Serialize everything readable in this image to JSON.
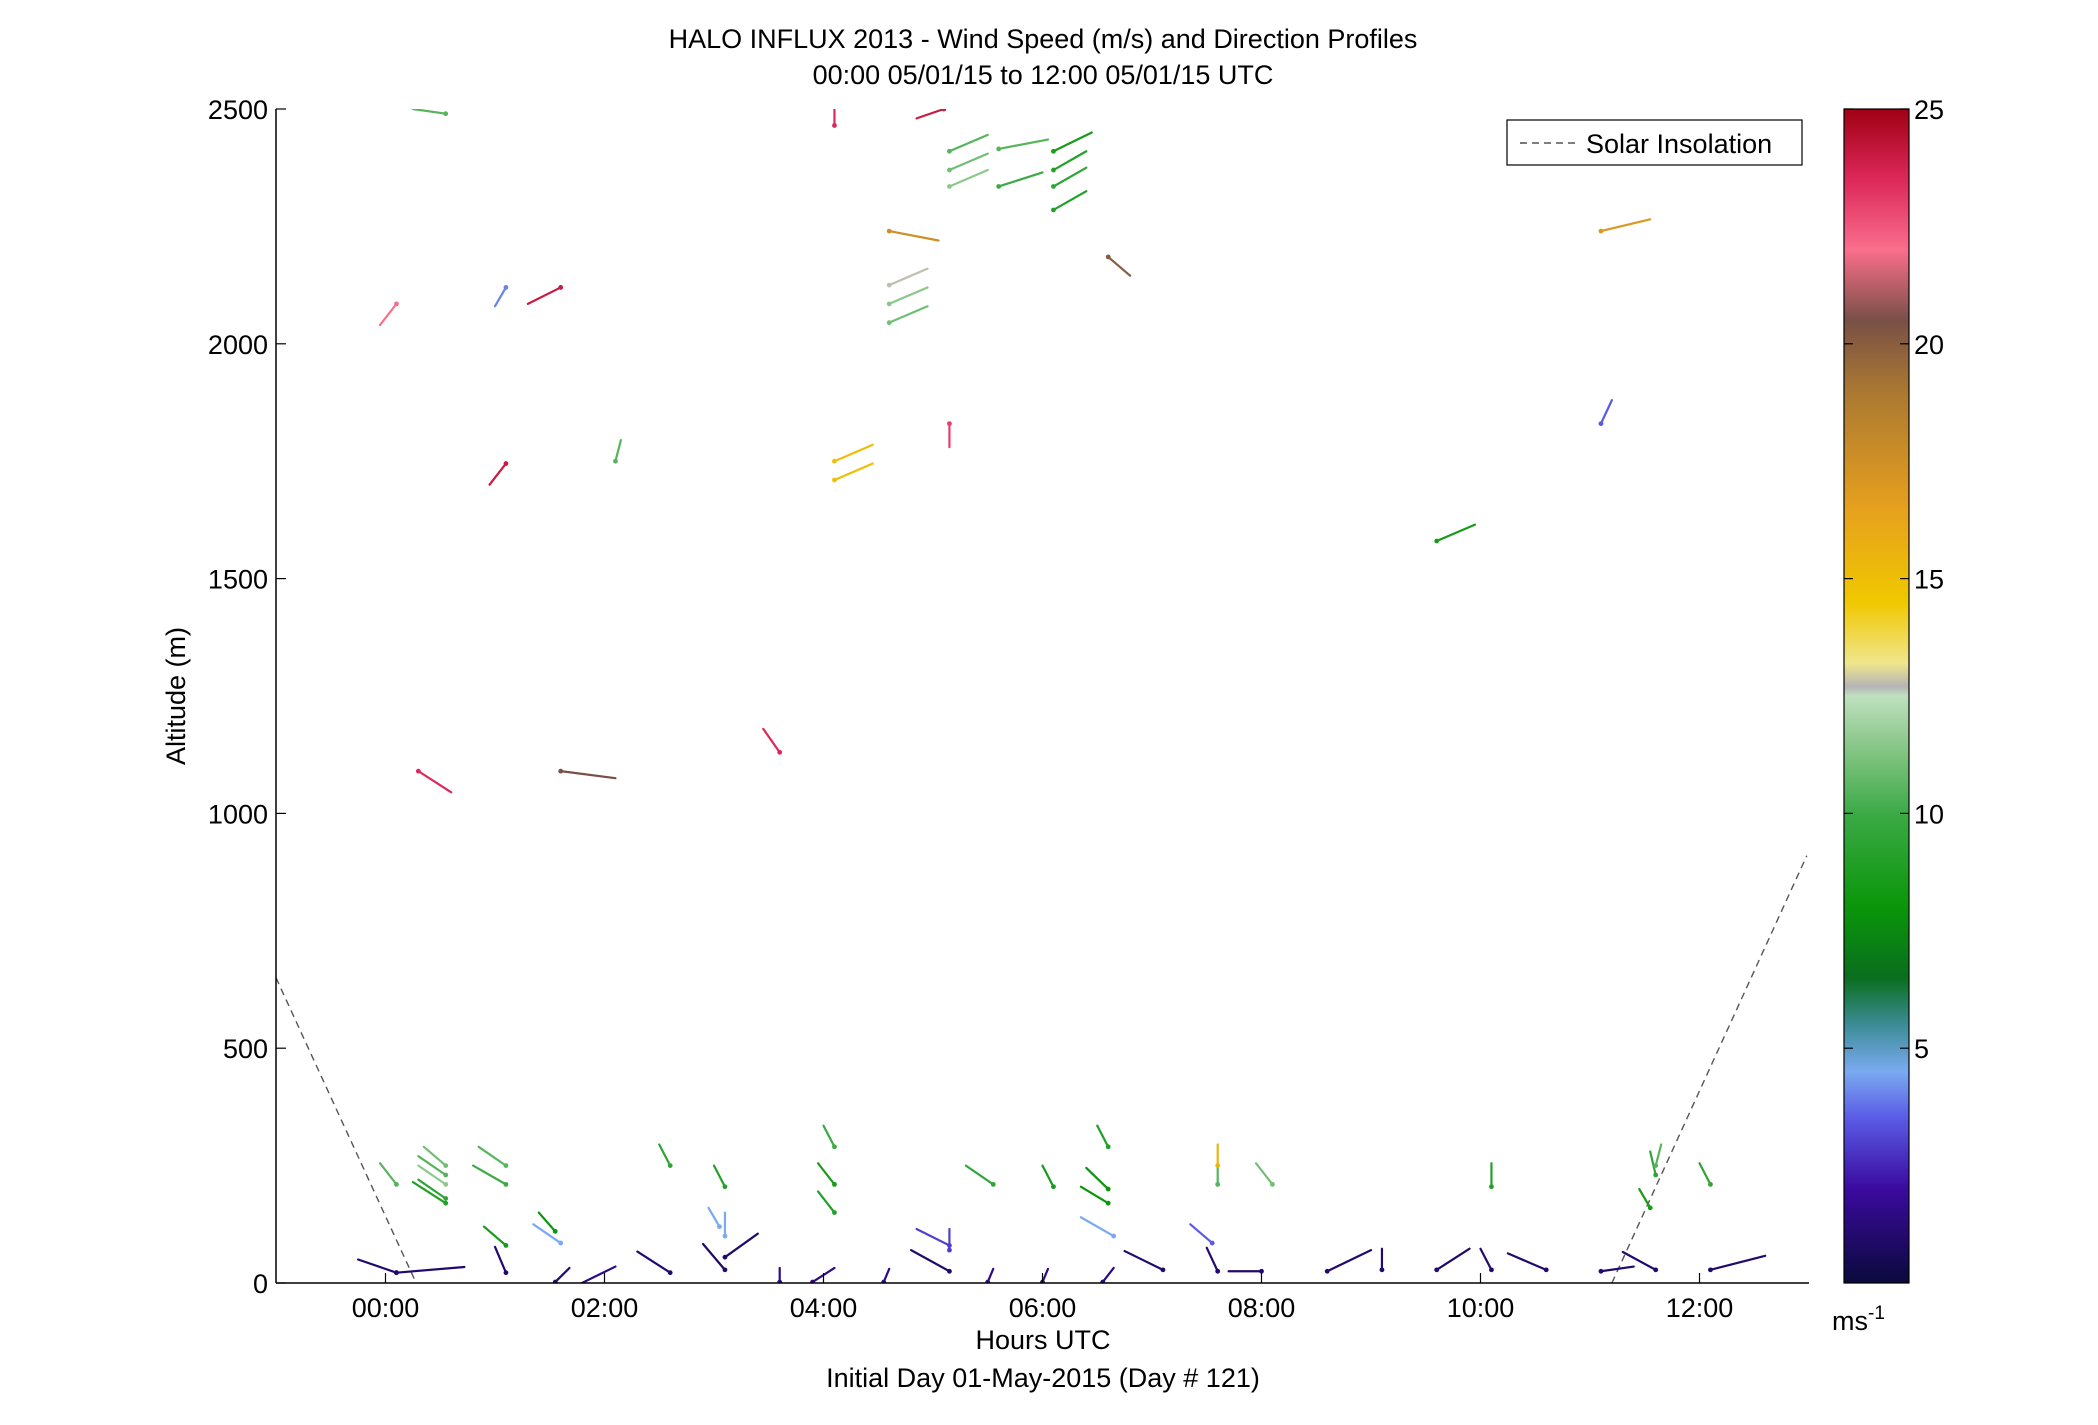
{
  "chart_data": {
    "type": "scatter",
    "title": "HALO INFLUX 2013 - Wind Speed (m/s) and Direction Profiles",
    "subtitle": "00:00 05/01/15 to 12:00 05/01/15  UTC",
    "xlabel": "Hours UTC",
    "xlabel2": "Initial Day 01-May-2015 (Day # 121)",
    "ylabel": "Altitude (m)",
    "xlim": [
      -1.0,
      13.0
    ],
    "ylim": [
      0,
      2500
    ],
    "xticks": [
      {
        "v": 0,
        "label": "00:00"
      },
      {
        "v": 2,
        "label": "02:00"
      },
      {
        "v": 4,
        "label": "04:00"
      },
      {
        "v": 6,
        "label": "06:00"
      },
      {
        "v": 8,
        "label": "08:00"
      },
      {
        "v": 10,
        "label": "10:00"
      },
      {
        "v": 12,
        "label": "12:00"
      }
    ],
    "yticks": [
      {
        "v": 0,
        "label": "0"
      },
      {
        "v": 500,
        "label": "500"
      },
      {
        "v": 1000,
        "label": "1000"
      },
      {
        "v": 1500,
        "label": "1500"
      },
      {
        "v": 2000,
        "label": "2000"
      },
      {
        "v": 2500,
        "label": "2500"
      }
    ],
    "legend": {
      "label": "Solar Insolation",
      "location": "top-right"
    },
    "colorbar": {
      "range": [
        0,
        25
      ],
      "ticks": [
        {
          "v": 5,
          "label": "5"
        },
        {
          "v": 10,
          "label": "10"
        },
        {
          "v": 15,
          "label": "15"
        },
        {
          "v": 20,
          "label": "20"
        },
        {
          "v": 25,
          "label": "25"
        }
      ],
      "unit_base": "ms",
      "unit_exp": "-1",
      "stops": [
        {
          "v": 0,
          "color": "#0a0a3c"
        },
        {
          "v": 2,
          "color": "#3a0a9e"
        },
        {
          "v": 3.5,
          "color": "#5a5ae6"
        },
        {
          "v": 4.5,
          "color": "#7aaaf0"
        },
        {
          "v": 5.5,
          "color": "#3c8c96"
        },
        {
          "v": 6.5,
          "color": "#0a6e1e"
        },
        {
          "v": 8,
          "color": "#0a960a"
        },
        {
          "v": 10,
          "color": "#3caa46"
        },
        {
          "v": 11.5,
          "color": "#8cc88c"
        },
        {
          "v": 12.5,
          "color": "#c0e0c0"
        },
        {
          "v": 12.7,
          "color": "#b4b4b4"
        },
        {
          "v": 13.2,
          "color": "#f0e68c"
        },
        {
          "v": 14.5,
          "color": "#f0c800"
        },
        {
          "v": 16.5,
          "color": "#e6a01e"
        },
        {
          "v": 19,
          "color": "#aa7832"
        },
        {
          "v": 20.5,
          "color": "#785046"
        },
        {
          "v": 22,
          "color": "#fa6e8c"
        },
        {
          "v": 23.5,
          "color": "#dc285a"
        },
        {
          "v": 25,
          "color": "#a00014"
        }
      ]
    },
    "solar_insolation": [
      [
        [
          -1.0,
          650
        ],
        [
          0.28,
          0
        ]
      ],
      [
        [
          11.2,
          0
        ],
        [
          12.98,
          910
        ]
      ]
    ],
    "barbs": [
      {
        "t": 0.1,
        "z": 22,
        "dt": -0.35,
        "dz": 28,
        "s": 1.0
      },
      {
        "t": 0.1,
        "z": 22,
        "dt": 0.62,
        "dz": 12,
        "s": 1.0
      },
      {
        "t": 1.1,
        "z": 22,
        "dt": -0.1,
        "dz": 55,
        "s": 1.0
      },
      {
        "t": 1.55,
        "z": 2,
        "dt": 0.13,
        "dz": 30,
        "s": 1.0
      },
      {
        "t": 1.75,
        "z": -5,
        "dt": 0.35,
        "dz": 40,
        "s": 1.5
      },
      {
        "t": 2.6,
        "z": 22,
        "dt": -0.3,
        "dz": 45,
        "s": 1.0
      },
      {
        "t": 3.1,
        "z": 28,
        "dt": -0.2,
        "dz": 55,
        "s": 1.0
      },
      {
        "t": 3.1,
        "z": 55,
        "dt": 0.3,
        "dz": 50,
        "s": 1.0
      },
      {
        "t": 3.6,
        "z": 2,
        "dt": 0.0,
        "dz": 30,
        "s": 1.5
      },
      {
        "t": 3.9,
        "z": 2,
        "dt": 0.2,
        "dz": 30,
        "s": 1.5
      },
      {
        "t": 4.55,
        "z": 2,
        "dt": 0.05,
        "dz": 28,
        "s": 1.5
      },
      {
        "t": 5.15,
        "z": 25,
        "dt": -0.35,
        "dz": 45,
        "s": 1.0
      },
      {
        "t": 5.5,
        "z": 2,
        "dt": 0.05,
        "dz": 28,
        "s": 1.5
      },
      {
        "t": 6.0,
        "z": 2,
        "dt": 0.05,
        "dz": 28,
        "s": 1.5
      },
      {
        "t": 6.55,
        "z": 2,
        "dt": 0.1,
        "dz": 30,
        "s": 1.5
      },
      {
        "t": 7.1,
        "z": 28,
        "dt": -0.35,
        "dz": 40,
        "s": 1.0
      },
      {
        "t": 7.6,
        "z": 25,
        "dt": -0.1,
        "dz": 50,
        "s": 1.0
      },
      {
        "t": 8.0,
        "z": 25,
        "dt": -0.3,
        "dz": 0,
        "s": 1.0
      },
      {
        "t": 8.6,
        "z": 25,
        "dt": 0.4,
        "dz": 45,
        "s": 1.0
      },
      {
        "t": 9.1,
        "z": 28,
        "dt": 0.0,
        "dz": 45,
        "s": 1.0
      },
      {
        "t": 9.6,
        "z": 28,
        "dt": 0.3,
        "dz": 45,
        "s": 1.0
      },
      {
        "t": 10.1,
        "z": 28,
        "dt": -0.1,
        "dz": 45,
        "s": 1.0
      },
      {
        "t": 10.6,
        "z": 28,
        "dt": -0.35,
        "dz": 35,
        "s": 1.0
      },
      {
        "t": 11.1,
        "z": 25,
        "dt": 0.3,
        "dz": 10,
        "s": 1.0
      },
      {
        "t": 11.6,
        "z": 28,
        "dt": -0.3,
        "dz": 38,
        "s": 1.0
      },
      {
        "t": 12.1,
        "z": 28,
        "dt": 0.5,
        "dz": 30,
        "s": 1.0
      },
      {
        "t": 1.1,
        "z": 80,
        "dt": -0.2,
        "dz": 40,
        "s": 8.5
      },
      {
        "t": 1.55,
        "z": 110,
        "dt": -0.15,
        "dz": 40,
        "s": 8.0
      },
      {
        "t": 1.6,
        "z": 85,
        "dt": -0.25,
        "dz": 40,
        "s": 4.5
      },
      {
        "t": 3.1,
        "z": 100,
        "dt": 0.0,
        "dz": 50,
        "s": 4.5
      },
      {
        "t": 3.05,
        "z": 120,
        "dt": -0.1,
        "dz": 40,
        "s": 4.5
      },
      {
        "t": 5.15,
        "z": 80,
        "dt": -0.3,
        "dz": 35,
        "s": 3.0
      },
      {
        "t": 5.15,
        "z": 70,
        "dt": 0.0,
        "dz": 45,
        "s": 3.0
      },
      {
        "t": 6.65,
        "z": 100,
        "dt": -0.3,
        "dz": 40,
        "s": 4.5
      },
      {
        "t": 7.55,
        "z": 85,
        "dt": -0.2,
        "dz": 40,
        "s": 3.5
      },
      {
        "t": 0.1,
        "z": 210,
        "dt": -0.15,
        "dz": 45,
        "s": 10.5
      },
      {
        "t": 0.55,
        "z": 180,
        "dt": -0.25,
        "dz": 40,
        "s": 9.5
      },
      {
        "t": 0.55,
        "z": 170,
        "dt": -0.3,
        "dz": 45,
        "s": 9.0
      },
      {
        "t": 0.55,
        "z": 230,
        "dt": -0.25,
        "dz": 40,
        "s": 10.5
      },
      {
        "t": 0.55,
        "z": 250,
        "dt": -0.2,
        "dz": 40,
        "s": 11.0
      },
      {
        "t": 0.55,
        "z": 210,
        "dt": -0.25,
        "dz": 40,
        "s": 11.5
      },
      {
        "t": 1.1,
        "z": 210,
        "dt": -0.3,
        "dz": 40,
        "s": 10.0
      },
      {
        "t": 1.1,
        "z": 250,
        "dt": -0.25,
        "dz": 40,
        "s": 10.5
      },
      {
        "t": 2.6,
        "z": 250,
        "dt": -0.1,
        "dz": 45,
        "s": 9.5
      },
      {
        "t": 3.1,
        "z": 205,
        "dt": -0.1,
        "dz": 45,
        "s": 9.0
      },
      {
        "t": 4.1,
        "z": 210,
        "dt": -0.15,
        "dz": 45,
        "s": 8.5
      },
      {
        "t": 4.1,
        "z": 150,
        "dt": -0.15,
        "dz": 45,
        "s": 9.0
      },
      {
        "t": 4.1,
        "z": 290,
        "dt": -0.1,
        "dz": 45,
        "s": 10.0
      },
      {
        "t": 5.55,
        "z": 210,
        "dt": -0.25,
        "dz": 40,
        "s": 9.5
      },
      {
        "t": 6.1,
        "z": 205,
        "dt": -0.1,
        "dz": 45,
        "s": 8.5
      },
      {
        "t": 6.6,
        "z": 200,
        "dt": -0.2,
        "dz": 45,
        "s": 8.0
      },
      {
        "t": 6.6,
        "z": 170,
        "dt": -0.25,
        "dz": 35,
        "s": 8.0
      },
      {
        "t": 6.6,
        "z": 290,
        "dt": -0.1,
        "dz": 45,
        "s": 9.0
      },
      {
        "t": 7.6,
        "z": 210,
        "dt": 0.0,
        "dz": 40,
        "s": 10.5
      },
      {
        "t": 7.6,
        "z": 250,
        "dt": 0.0,
        "dz": 45,
        "s": 15.5
      },
      {
        "t": 8.1,
        "z": 210,
        "dt": -0.15,
        "dz": 45,
        "s": 11.0
      },
      {
        "t": 10.1,
        "z": 205,
        "dt": 0.0,
        "dz": 50,
        "s": 9.0
      },
      {
        "t": 11.55,
        "z": 160,
        "dt": -0.1,
        "dz": 40,
        "s": 8.5
      },
      {
        "t": 11.6,
        "z": 230,
        "dt": -0.05,
        "dz": 50,
        "s": 9.5
      },
      {
        "t": 11.6,
        "z": 250,
        "dt": 0.05,
        "dz": 45,
        "s": 10.5
      },
      {
        "t": 12.1,
        "z": 210,
        "dt": -0.1,
        "dz": 45,
        "s": 9.5
      },
      {
        "t": 0.3,
        "z": 1090,
        "dt": 0.3,
        "dz": -45,
        "s": 23.5
      },
      {
        "t": 1.6,
        "z": 1090,
        "dt": 0.5,
        "dz": -15,
        "s": 20.5
      },
      {
        "t": 3.6,
        "z": 1130,
        "dt": -0.15,
        "dz": 50,
        "s": 23.5
      },
      {
        "t": 1.1,
        "z": 1745,
        "dt": -0.15,
        "dz": -45,
        "s": 24.0
      },
      {
        "t": 2.1,
        "z": 1750,
        "dt": 0.05,
        "dz": 45,
        "s": 10.5
      },
      {
        "t": 4.1,
        "z": 1750,
        "dt": 0.35,
        "dz": 35,
        "s": 15.0
      },
      {
        "t": 4.1,
        "z": 1710,
        "dt": 0.35,
        "dz": 35,
        "s": 15.0
      },
      {
        "t": 5.15,
        "z": 1830,
        "dt": 0.0,
        "dz": -50,
        "s": 23.0
      },
      {
        "t": 9.6,
        "z": 1580,
        "dt": 0.35,
        "dz": 35,
        "s": 8.5
      },
      {
        "t": 11.1,
        "z": 1830,
        "dt": 0.1,
        "dz": 50,
        "s": 3.5
      },
      {
        "t": 0.1,
        "z": 2085,
        "dt": -0.15,
        "dz": -45,
        "s": 22.0
      },
      {
        "t": 1.1,
        "z": 2120,
        "dt": -0.1,
        "dz": -40,
        "s": 4.0
      },
      {
        "t": 1.6,
        "z": 2120,
        "dt": -0.3,
        "dz": -35,
        "s": 24.0
      },
      {
        "t": 0.55,
        "z": 2490,
        "dt": -0.3,
        "dz": 10,
        "s": 10.5
      },
      {
        "t": 4.1,
        "z": 2465,
        "dt": 0.0,
        "dz": 40,
        "s": 23.5
      },
      {
        "t": 5.1,
        "z": 2500,
        "dt": -0.25,
        "dz": -20,
        "s": 24.0
      },
      {
        "t": 4.6,
        "z": 2240,
        "dt": 0.45,
        "dz": -20,
        "s": 17.5
      },
      {
        "t": 4.6,
        "z": 2125,
        "dt": 0.35,
        "dz": 35,
        "s": 12.8
      },
      {
        "t": 4.6,
        "z": 2085,
        "dt": 0.35,
        "dz": 35,
        "s": 11.5
      },
      {
        "t": 4.6,
        "z": 2045,
        "dt": 0.35,
        "dz": 35,
        "s": 11.0
      },
      {
        "t": 5.15,
        "z": 2410,
        "dt": 0.35,
        "dz": 35,
        "s": 10.5
      },
      {
        "t": 5.15,
        "z": 2370,
        "dt": 0.35,
        "dz": 35,
        "s": 11.0
      },
      {
        "t": 5.15,
        "z": 2335,
        "dt": 0.35,
        "dz": 35,
        "s": 11.5
      },
      {
        "t": 5.6,
        "z": 2415,
        "dt": 0.45,
        "dz": 20,
        "s": 10.5
      },
      {
        "t": 5.6,
        "z": 2335,
        "dt": 0.4,
        "dz": 30,
        "s": 10.0
      },
      {
        "t": 6.1,
        "z": 2410,
        "dt": 0.35,
        "dz": 40,
        "s": 8.5
      },
      {
        "t": 6.1,
        "z": 2370,
        "dt": 0.3,
        "dz": 40,
        "s": 9.0
      },
      {
        "t": 6.1,
        "z": 2335,
        "dt": 0.3,
        "dz": 40,
        "s": 9.5
      },
      {
        "t": 6.1,
        "z": 2285,
        "dt": 0.3,
        "dz": 40,
        "s": 9.0
      },
      {
        "t": 6.6,
        "z": 2185,
        "dt": 0.2,
        "dz": -40,
        "s": 20.0
      },
      {
        "t": 11.1,
        "z": 2240,
        "dt": 0.45,
        "dz": 25,
        "s": 17.0
      }
    ]
  }
}
